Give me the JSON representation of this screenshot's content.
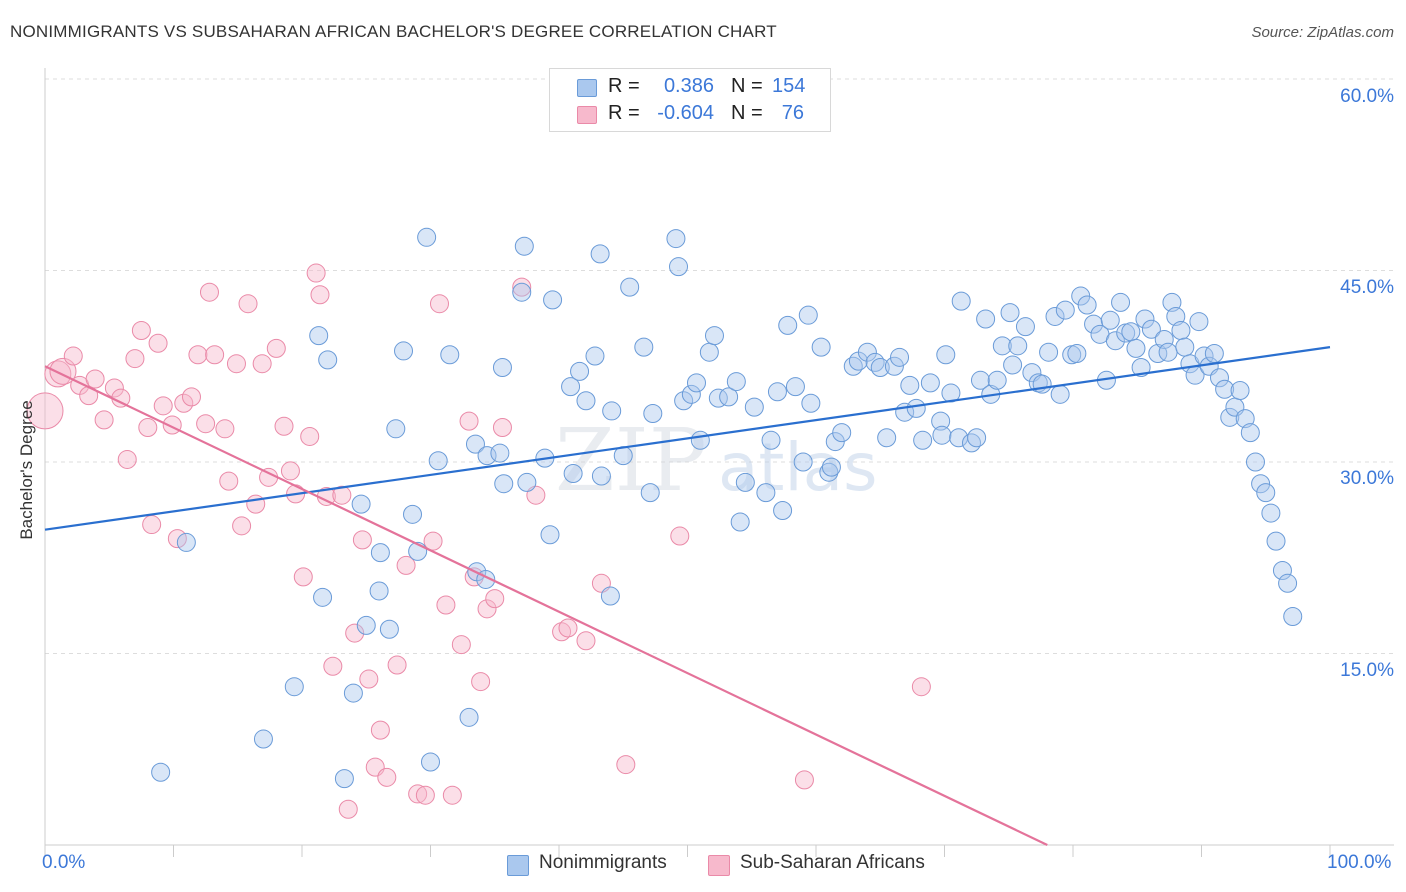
{
  "title": "NONIMMIGRANTS VS SUBSAHARAN AFRICAN BACHELOR'S DEGREE CORRELATION CHART",
  "source": "Source: ZipAtlas.com",
  "legend": {
    "rows": [
      {
        "r_label": "R =",
        "r_value": "0.386",
        "n_label": "N =",
        "n_value": "154"
      },
      {
        "r_label": "R =",
        "r_value": "-0.604",
        "n_label": "N =",
        "n_value": "76"
      }
    ]
  },
  "bottom_legend": [
    "Nonimmigrants",
    "Sub-Saharan Africans"
  ],
  "colors": {
    "blue_fill": "#aac8ee",
    "blue_stroke": "#6a9bd8",
    "blue_line": "#2a6fcf",
    "pink_fill": "#f7b9cc",
    "pink_stroke": "#ea8aa8",
    "pink_line": "#e4739a",
    "tick_text": "#3c78d8",
    "grid": "#dddddd"
  },
  "chart_data": {
    "type": "scatter",
    "title": "NONIMMIGRANTS VS SUBSAHARAN AFRICAN BACHELOR'S DEGREE CORRELATION CHART",
    "xlabel": "",
    "ylabel": "Bachelor's Degree",
    "xlim": [
      0,
      100
    ],
    "ylim": [
      0,
      60
    ],
    "x_tick_labels": [
      "0.0%",
      "100.0%"
    ],
    "y_ticks": [
      15,
      30,
      45,
      60
    ],
    "y_tick_labels": [
      "15.0%",
      "30.0%",
      "45.0%",
      "60.0%"
    ],
    "grid": "horizontal dashed",
    "legend_position": "top-center",
    "series": [
      {
        "name": "Nonimmigrants",
        "r": 0.386,
        "n": 154,
        "trend": {
          "x": [
            0,
            100
          ],
          "y": [
            24.7,
            39.0
          ]
        },
        "points": [
          [
            9,
            5.7
          ],
          [
            11,
            23.7
          ],
          [
            17,
            8.3
          ],
          [
            19.4,
            12.4
          ],
          [
            21.3,
            39.9
          ],
          [
            21.6,
            19.4
          ],
          [
            22,
            38
          ],
          [
            23.3,
            5.2
          ],
          [
            24,
            11.9
          ],
          [
            24.6,
            26.7
          ],
          [
            25,
            17.2
          ],
          [
            26,
            19.9
          ],
          [
            26.1,
            22.9
          ],
          [
            26.8,
            16.9
          ],
          [
            27.3,
            32.6
          ],
          [
            27.9,
            38.7
          ],
          [
            28.6,
            25.9
          ],
          [
            29,
            23
          ],
          [
            29.7,
            47.6
          ],
          [
            30,
            6.5
          ],
          [
            30.6,
            30.1
          ],
          [
            31.5,
            38.4
          ],
          [
            33,
            10
          ],
          [
            33.5,
            31.4
          ],
          [
            33.6,
            21.4
          ],
          [
            34.3,
            20.8
          ],
          [
            34.4,
            30.5
          ],
          [
            35.4,
            30.7
          ],
          [
            35.6,
            37.4
          ],
          [
            35.7,
            28.3
          ],
          [
            37.1,
            43.3
          ],
          [
            37.3,
            46.9
          ],
          [
            37.5,
            28.4
          ],
          [
            38.9,
            30.3
          ],
          [
            39.3,
            24.3
          ],
          [
            39.5,
            42.7
          ],
          [
            40.9,
            35.9
          ],
          [
            41.1,
            29.1
          ],
          [
            41.6,
            37.1
          ],
          [
            42.1,
            34.8
          ],
          [
            42.8,
            38.3
          ],
          [
            43.2,
            46.3
          ],
          [
            43.3,
            28.9
          ],
          [
            44,
            19.5
          ],
          [
            44.1,
            34
          ],
          [
            45,
            30.5
          ],
          [
            45.5,
            43.7
          ],
          [
            46.6,
            39
          ],
          [
            47.1,
            27.6
          ],
          [
            47.3,
            33.8
          ],
          [
            48.2,
            58.9
          ],
          [
            49.1,
            47.5
          ],
          [
            49.3,
            45.3
          ],
          [
            49.7,
            34.8
          ],
          [
            50.3,
            35.3
          ],
          [
            50.7,
            36.2
          ],
          [
            51,
            31.7
          ],
          [
            51.7,
            38.6
          ],
          [
            52.1,
            39.9
          ],
          [
            52.4,
            35
          ],
          [
            53.2,
            35.1
          ],
          [
            53.8,
            36.3
          ],
          [
            54.1,
            25.3
          ],
          [
            54.5,
            28.4
          ],
          [
            55.2,
            34.3
          ],
          [
            56.1,
            27.6
          ],
          [
            56.5,
            31.7
          ],
          [
            57,
            35.5
          ],
          [
            57.4,
            26.2
          ],
          [
            57.8,
            40.7
          ],
          [
            58.4,
            35.9
          ],
          [
            59,
            30
          ],
          [
            59.4,
            41.5
          ],
          [
            59.6,
            34.6
          ],
          [
            60.4,
            39
          ],
          [
            61,
            29.2
          ],
          [
            61.2,
            29.6
          ],
          [
            61.5,
            31.6
          ],
          [
            62,
            32.3
          ],
          [
            62.9,
            37.5
          ],
          [
            63.3,
            37.9
          ],
          [
            64,
            38.6
          ],
          [
            64.6,
            37.8
          ],
          [
            65,
            37.4
          ],
          [
            65.5,
            31.9
          ],
          [
            66.1,
            37.5
          ],
          [
            66.5,
            38.2
          ],
          [
            66.9,
            33.9
          ],
          [
            67.3,
            36
          ],
          [
            67.8,
            34.2
          ],
          [
            68.3,
            31.7
          ],
          [
            68.9,
            36.2
          ],
          [
            69.7,
            33.2
          ],
          [
            69.8,
            32.1
          ],
          [
            70.1,
            38.4
          ],
          [
            70.5,
            35.4
          ],
          [
            71.1,
            31.9
          ],
          [
            71.3,
            42.6
          ],
          [
            72.1,
            31.5
          ],
          [
            72.5,
            31.9
          ],
          [
            72.8,
            36.4
          ],
          [
            73.2,
            41.2
          ],
          [
            73.6,
            35.3
          ],
          [
            74.1,
            36.4
          ],
          [
            74.5,
            39.1
          ],
          [
            75.1,
            41.7
          ],
          [
            75.3,
            37.6
          ],
          [
            75.7,
            39.1
          ],
          [
            76.3,
            40.6
          ],
          [
            76.8,
            37
          ],
          [
            77.3,
            36.2
          ],
          [
            77.6,
            36.1
          ],
          [
            78.1,
            38.6
          ],
          [
            78.6,
            41.4
          ],
          [
            79,
            35.3
          ],
          [
            79.4,
            41.9
          ],
          [
            79.9,
            38.4
          ],
          [
            80.3,
            38.5
          ],
          [
            80.6,
            43
          ],
          [
            81.1,
            42.3
          ],
          [
            81.6,
            40.8
          ],
          [
            82.1,
            40
          ],
          [
            82.6,
            36.4
          ],
          [
            82.9,
            41.1
          ],
          [
            83.3,
            39.5
          ],
          [
            83.7,
            42.5
          ],
          [
            84.1,
            40.1
          ],
          [
            84.5,
            40.2
          ],
          [
            84.9,
            38.9
          ],
          [
            85.3,
            37.4
          ],
          [
            85.6,
            41.2
          ],
          [
            86.1,
            40.4
          ],
          [
            86.6,
            38.5
          ],
          [
            87.1,
            39.6
          ],
          [
            87.4,
            38.6
          ],
          [
            87.7,
            42.5
          ],
          [
            88,
            41.4
          ],
          [
            88.4,
            40.3
          ],
          [
            88.7,
            39
          ],
          [
            89.1,
            37.7
          ],
          [
            89.5,
            36.8
          ],
          [
            89.8,
            41
          ],
          [
            90.2,
            38.3
          ],
          [
            90.6,
            37.5
          ],
          [
            91,
            38.5
          ],
          [
            91.4,
            36.6
          ],
          [
            91.8,
            35.7
          ],
          [
            92.2,
            33.5
          ],
          [
            92.6,
            34.3
          ],
          [
            93,
            35.6
          ],
          [
            93.4,
            33.4
          ],
          [
            93.8,
            32.3
          ],
          [
            94.2,
            30
          ],
          [
            94.6,
            28.3
          ],
          [
            95,
            27.6
          ],
          [
            95.4,
            26
          ],
          [
            95.8,
            23.8
          ],
          [
            96.3,
            21.5
          ],
          [
            96.7,
            20.5
          ],
          [
            97.1,
            17.9
          ]
        ]
      },
      {
        "name": "Sub-Saharan Africans",
        "r": -0.604,
        "n": 76,
        "trend": {
          "x": [
            0,
            78
          ],
          "y": [
            37.5,
            0
          ]
        },
        "points": [
          [
            0,
            34
          ],
          [
            1,
            36.9
          ],
          [
            1.4,
            37.1
          ],
          [
            2.2,
            38.3
          ],
          [
            2.7,
            36
          ],
          [
            3.4,
            35.2
          ],
          [
            3.9,
            36.5
          ],
          [
            4.6,
            33.3
          ],
          [
            5.4,
            35.8
          ],
          [
            5.9,
            35
          ],
          [
            6.4,
            30.2
          ],
          [
            7,
            38.1
          ],
          [
            7.5,
            40.3
          ],
          [
            8,
            32.7
          ],
          [
            8.3,
            25.1
          ],
          [
            8.8,
            39.3
          ],
          [
            9.2,
            34.4
          ],
          [
            9.9,
            32.9
          ],
          [
            10.3,
            24
          ],
          [
            10.8,
            34.6
          ],
          [
            11.4,
            35.1
          ],
          [
            11.9,
            38.4
          ],
          [
            12.5,
            33
          ],
          [
            12.8,
            43.3
          ],
          [
            13.2,
            38.4
          ],
          [
            14,
            32.6
          ],
          [
            14.3,
            28.5
          ],
          [
            14.9,
            37.7
          ],
          [
            15.3,
            25
          ],
          [
            15.8,
            42.4
          ],
          [
            16.4,
            26.7
          ],
          [
            16.9,
            37.7
          ],
          [
            17.4,
            28.8
          ],
          [
            18,
            38.9
          ],
          [
            18.6,
            32.8
          ],
          [
            19.1,
            29.3
          ],
          [
            19.5,
            27.5
          ],
          [
            20.1,
            21
          ],
          [
            20.6,
            32
          ],
          [
            21.1,
            44.8
          ],
          [
            21.4,
            43.1
          ],
          [
            21.9,
            27.3
          ],
          [
            22.4,
            14
          ],
          [
            23.1,
            27.4
          ],
          [
            23.6,
            2.8
          ],
          [
            24.1,
            16.6
          ],
          [
            24.7,
            23.9
          ],
          [
            25.2,
            13
          ],
          [
            25.7,
            6.1
          ],
          [
            26.1,
            9
          ],
          [
            26.6,
            5.3
          ],
          [
            27.4,
            14.1
          ],
          [
            28.1,
            21.9
          ],
          [
            29,
            4
          ],
          [
            29.6,
            3.9
          ],
          [
            30.2,
            23.8
          ],
          [
            30.7,
            42.4
          ],
          [
            31.2,
            18.8
          ],
          [
            31.7,
            3.9
          ],
          [
            32.4,
            15.7
          ],
          [
            33,
            33.2
          ],
          [
            33.4,
            21
          ],
          [
            33.9,
            12.8
          ],
          [
            34.4,
            18.5
          ],
          [
            35,
            19.3
          ],
          [
            35.6,
            32.7
          ],
          [
            37.1,
            43.7
          ],
          [
            38.2,
            27.4
          ],
          [
            40.2,
            16.7
          ],
          [
            40.7,
            17
          ],
          [
            42.1,
            16
          ],
          [
            43.3,
            20.5
          ],
          [
            45.2,
            6.3
          ],
          [
            49.4,
            24.2
          ],
          [
            59.1,
            5.1
          ],
          [
            68.2,
            12.4
          ]
        ]
      }
    ]
  }
}
